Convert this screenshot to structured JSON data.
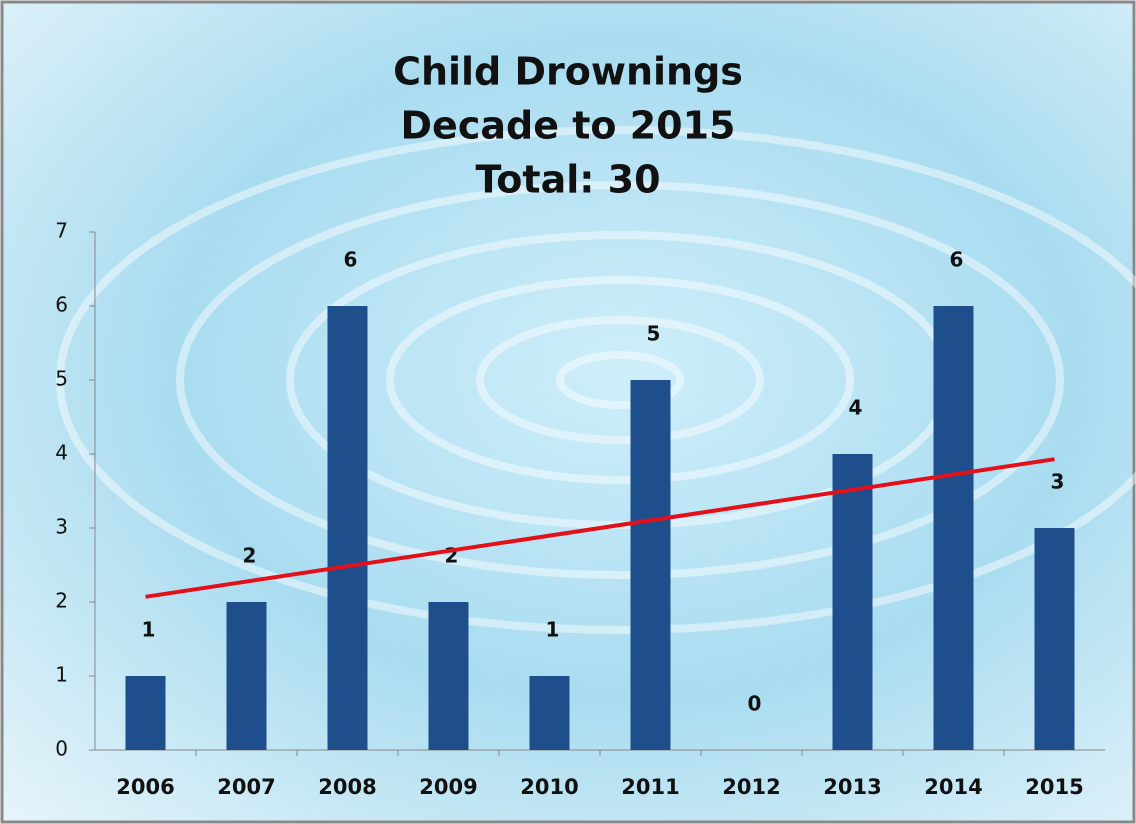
{
  "chart_data": {
    "type": "bar",
    "title": [
      "Child Drownings",
      "Decade to 2015",
      "Total: 30"
    ],
    "categories": [
      "2006",
      "2007",
      "2008",
      "2009",
      "2010",
      "2011",
      "2012",
      "2013",
      "2014",
      "2015"
    ],
    "values": [
      1,
      2,
      6,
      2,
      1,
      5,
      0,
      4,
      6,
      3
    ],
    "color": "#1f4e8c",
    "ylim": [
      0,
      7
    ],
    "yticks": [
      0,
      1,
      2,
      3,
      4,
      5,
      6,
      7
    ],
    "grid": false,
    "trend": {
      "color": "#e3101a",
      "from": 2.07,
      "to": 3.93
    }
  }
}
